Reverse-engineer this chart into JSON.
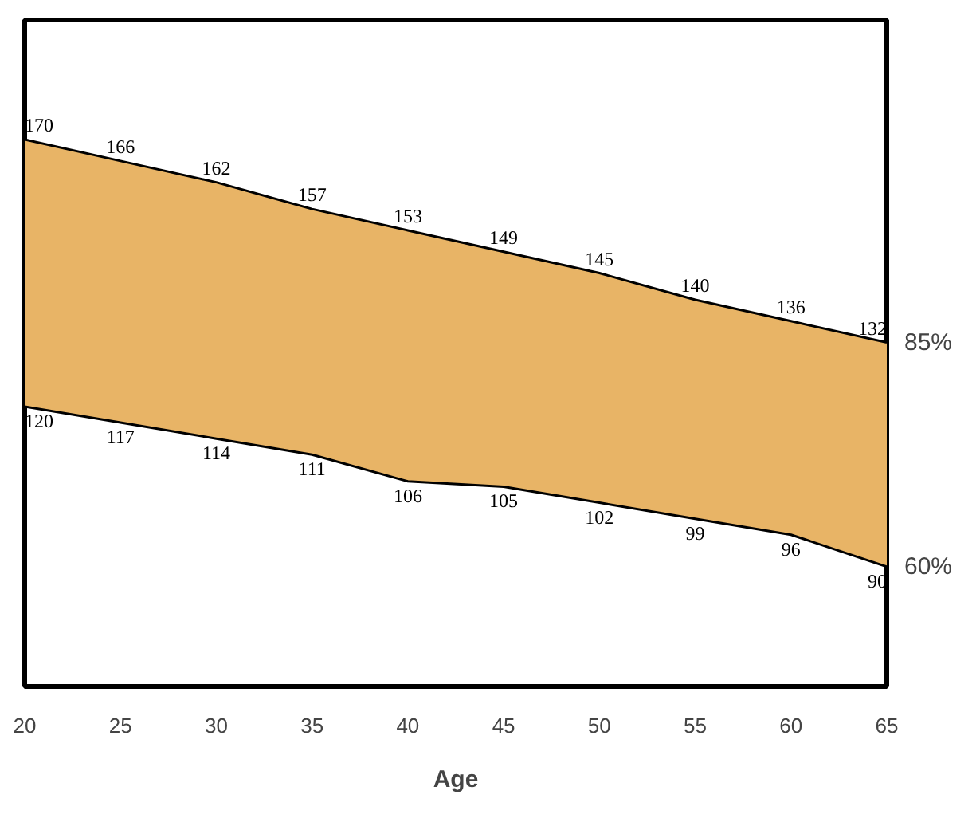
{
  "chart_data": {
    "type": "line",
    "xlabel": "Age",
    "x": [
      20,
      25,
      30,
      35,
      40,
      45,
      50,
      55,
      60,
      65
    ],
    "xlim": [
      20,
      65
    ],
    "xticks": [
      20,
      25,
      30,
      35,
      40,
      45,
      50,
      55,
      60,
      65
    ],
    "tick_labels": "x",
    "data_labels": true,
    "grid": false,
    "legend": false,
    "marker": "none",
    "line_style": "solid",
    "series": [
      {
        "name": "85%",
        "type": "area",
        "color": "#e8b466",
        "values": [
          170,
          166,
          162,
          157,
          153,
          149,
          145,
          140,
          136,
          132
        ]
      },
      {
        "name": "60%",
        "color": "#000000",
        "values": [
          120,
          117,
          114,
          111,
          106,
          105,
          102,
          99,
          96,
          90
        ]
      }
    ]
  }
}
